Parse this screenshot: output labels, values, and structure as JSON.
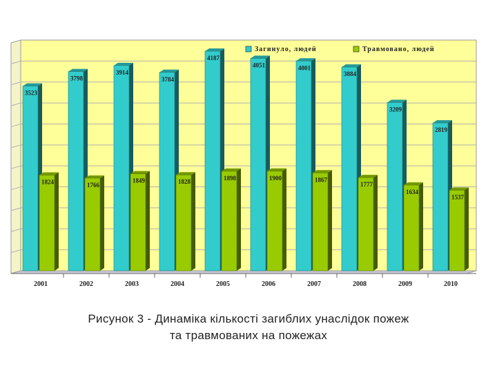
{
  "chart_data": {
    "type": "bar",
    "categories": [
      "2001",
      "2002",
      "2003",
      "2004",
      "2005",
      "2006",
      "2007",
      "2008",
      "2009",
      "2010"
    ],
    "series": [
      {
        "name": "Загинуло, людей",
        "values": [
          3523,
          3798,
          3914,
          3784,
          4187,
          4051,
          4001,
          3884,
          3209,
          2819
        ],
        "color": "#33CCCC"
      },
      {
        "name": "Травмовано, людей",
        "values": [
          1824,
          1766,
          1849,
          1828,
          1898,
          1900,
          1867,
          1777,
          1634,
          1537
        ],
        "color": "#99CC00"
      }
    ],
    "ylim": [
      0,
      4400
    ],
    "grid": true,
    "legend_position": "top-right",
    "plot_background": "#FFFF99"
  },
  "caption": {
    "line1": "Рисунок 3 - Динаміка кількості загиблих унаслідок пожеж",
    "line2": "та травмованих на пожежах"
  }
}
